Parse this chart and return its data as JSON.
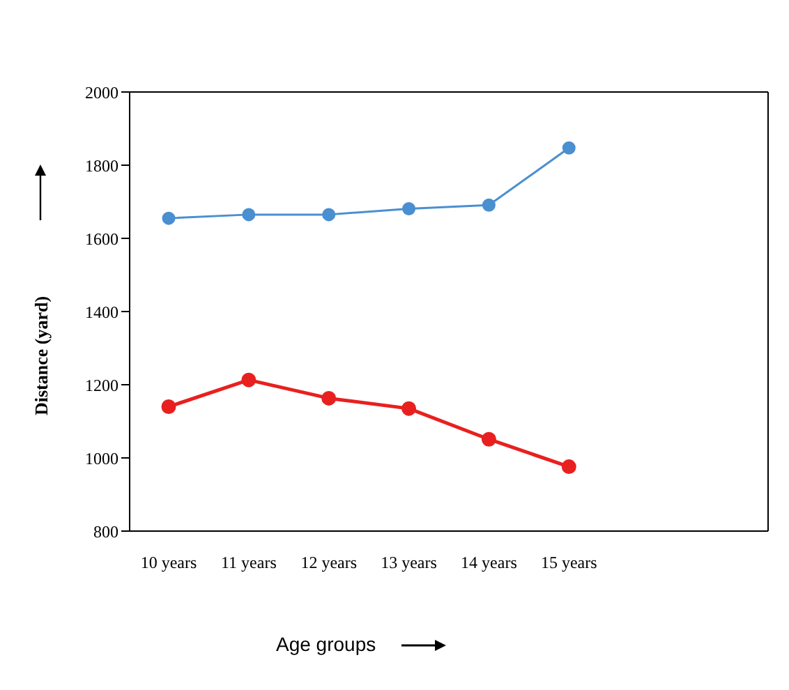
{
  "chart_data": {
    "type": "line",
    "ylabel": "Distance (yard)",
    "xlabel": "Age groups",
    "categories": [
      "10 years",
      "11 years",
      "12 years",
      "13 years",
      "14 years",
      "15 years",
      null,
      null
    ],
    "series": [
      {
        "color": "#4a8fd0",
        "values": [
          1655,
          1665,
          1665,
          1681,
          1691,
          1847,
          null,
          null
        ]
      },
      {
        "color": "#e8201f",
        "values": [
          1140,
          1213,
          1163,
          1135,
          1051,
          976,
          null,
          null
        ]
      }
    ],
    "ylim": [
      800,
      2000
    ],
    "yticks": [
      800,
      1000,
      1200,
      1400,
      1600,
      1800,
      2000
    ],
    "grid": false,
    "legend": false,
    "marker": "circle",
    "line_style": "solid"
  }
}
